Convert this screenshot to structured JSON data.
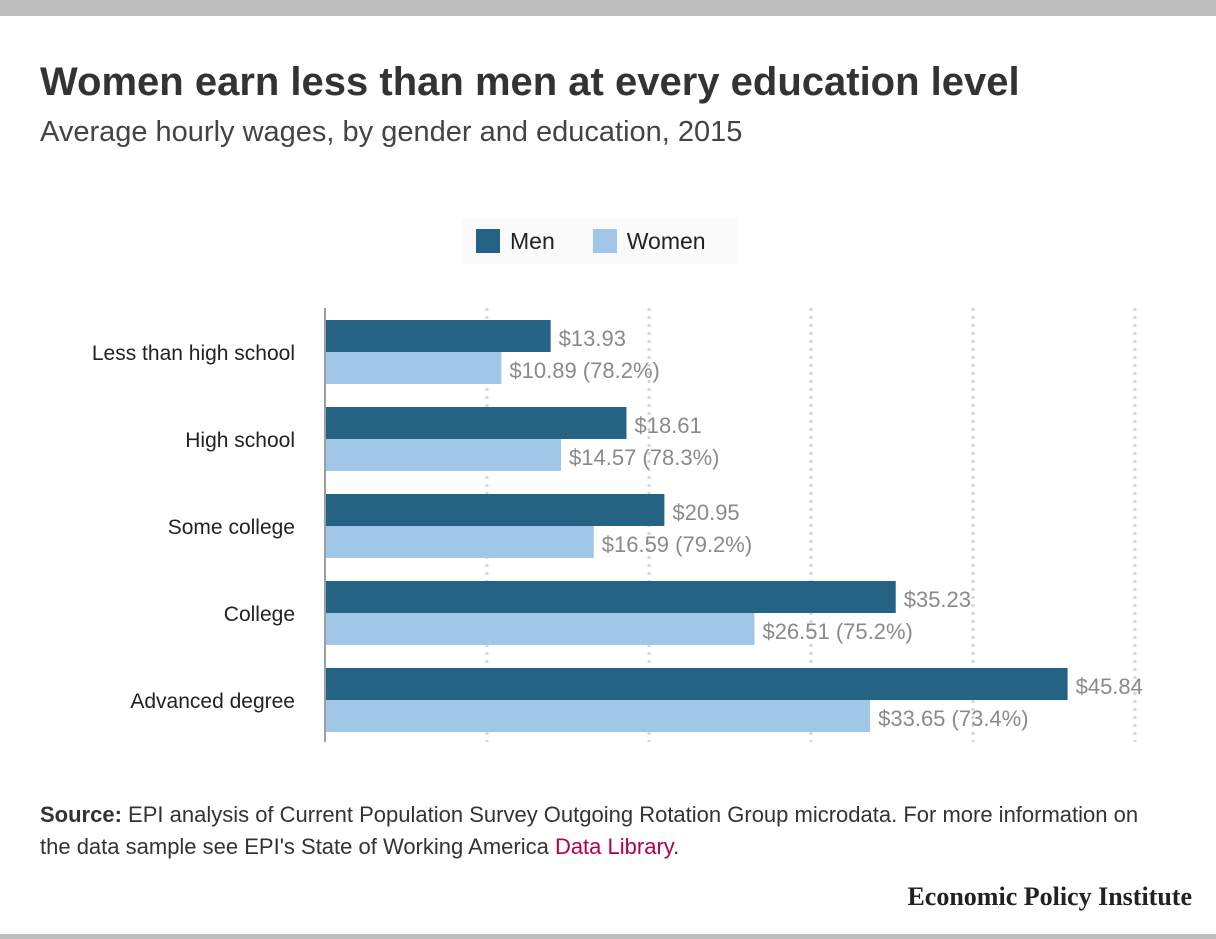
{
  "title": "Women earn less than men at every education level",
  "subtitle": "Average hourly wages, by gender and education, 2015",
  "legend": {
    "men_label": "Men",
    "women_label": "Women"
  },
  "colors": {
    "men": "#256384",
    "women": "#a1c7e8",
    "grid": "#d6d6d6",
    "axis": "#9e9e9e",
    "link": "#b3004d"
  },
  "chart_data": {
    "type": "bar",
    "orientation": "horizontal",
    "categories": [
      "Less than high school",
      "High school",
      "Some college",
      "College",
      "Advanced degree"
    ],
    "series": [
      {
        "name": "Men",
        "values": [
          13.93,
          18.61,
          20.95,
          35.23,
          45.84
        ]
      },
      {
        "name": "Women",
        "values": [
          10.89,
          14.57,
          16.59,
          26.51,
          33.65
        ]
      }
    ],
    "data_labels": {
      "men": [
        "$13.93",
        "$18.61",
        "$20.95",
        "$35.23",
        "$45.84"
      ],
      "women": [
        "$10.89 (78.2%)",
        "$14.57 (78.3%)",
        "$16.59 (79.2%)",
        "$26.51 (75.2%)",
        "$33.65 (73.4%)"
      ]
    },
    "xlim": [
      0,
      50
    ],
    "gridlines": [
      10,
      20,
      30,
      40,
      50
    ],
    "grid": true,
    "legend_position": "top"
  },
  "source": {
    "prefix": "Source:",
    "text": " EPI analysis of Current Population Survey Outgoing Rotation Group microdata. For more information on the data sample see EPI's State of Working America ",
    "link_text": "Data Library",
    "suffix": "."
  },
  "footer": {
    "logo_text": "Economic Policy Institute"
  }
}
